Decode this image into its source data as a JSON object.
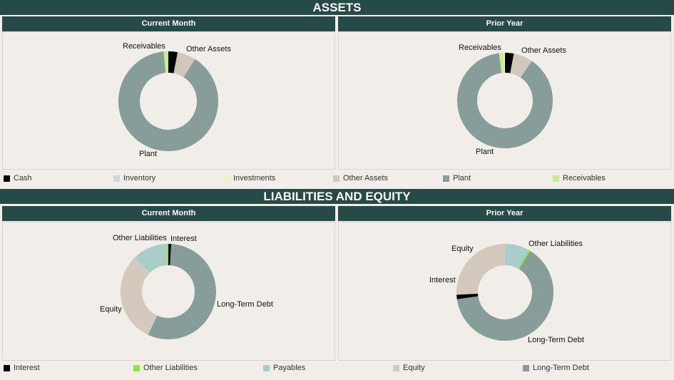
{
  "assets": {
    "title": "ASSETS",
    "legend": [
      {
        "label": "Cash",
        "color": "#000000"
      },
      {
        "label": "Inventory",
        "color": "#c5dada"
      },
      {
        "label": "Investments",
        "color": "#eaf5c8"
      },
      {
        "label": "Other Assets",
        "color": "#d0c8bc"
      },
      {
        "label": "Plant",
        "color": "#869d99"
      },
      {
        "label": "Receivables",
        "color": "#c6ef8a"
      }
    ],
    "current": {
      "title": "Current Month",
      "slices": [
        {
          "label": "Cash",
          "pct": 3
        },
        {
          "label": "Other Assets",
          "pct": 6
        },
        {
          "label": "Plant",
          "pct": 89.5
        },
        {
          "label": "Receivables",
          "pct": 1.5
        }
      ],
      "labels": {
        "receivables": "Receivables",
        "other": "Other Assets",
        "plant": "Plant"
      }
    },
    "prior": {
      "title": "Prior Year",
      "slices": [
        {
          "label": "Cash",
          "pct": 3
        },
        {
          "label": "Other Assets",
          "pct": 6.5
        },
        {
          "label": "Plant",
          "pct": 88.5
        },
        {
          "label": "Receivables",
          "pct": 1.5
        },
        {
          "label": "Investments",
          "pct": 0.5
        }
      ],
      "labels": {
        "receivables": "Receivables",
        "other": "Other Assets",
        "plant": "Plant"
      }
    }
  },
  "liabilities": {
    "title": "LIABILITIES AND EQUITY",
    "legend": [
      {
        "label": "Interest",
        "color": "#000000"
      },
      {
        "label": "Other Liabilities",
        "color": "#8fe63a"
      },
      {
        "label": "Payables",
        "color": "#a9cdc9"
      },
      {
        "label": "Equity",
        "color": "#d3cabd"
      },
      {
        "label": "Long-Term Debt",
        "color": "#869d99"
      }
    ],
    "current": {
      "title": "Current Month",
      "slices": [
        {
          "label": "Interest",
          "pct": 1
        },
        {
          "label": "Long-Term Debt",
          "pct": 56
        },
        {
          "label": "Equity",
          "pct": 30.5
        },
        {
          "label": "Payables",
          "pct": 12
        },
        {
          "label": "Other Liabilities",
          "pct": 0.5
        }
      ],
      "labels": {
        "other": "Other Liabilities",
        "interest": "Interest",
        "equity": "Equity",
        "ltd": "Long-Term Debt"
      }
    },
    "prior": {
      "title": "Prior Year",
      "slices": [
        {
          "label": "Payables",
          "pct": 8
        },
        {
          "label": "Other Liabilities",
          "pct": 0.7
        },
        {
          "label": "Long-Term Debt",
          "pct": 64
        },
        {
          "label": "Interest",
          "pct": 1.5
        },
        {
          "label": "Equity",
          "pct": 25.8
        }
      ],
      "labels": {
        "other": "Other Liabilities",
        "interest": "Interest",
        "equity": "Equity",
        "ltd": "Long-Term Debt"
      }
    }
  }
}
